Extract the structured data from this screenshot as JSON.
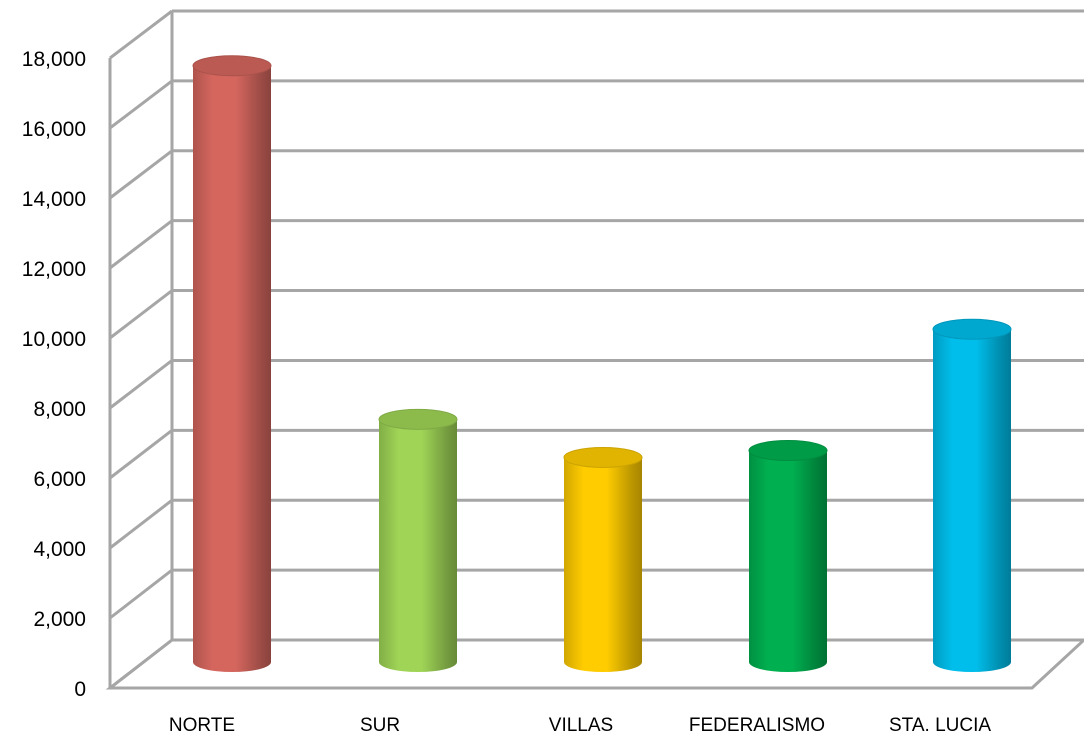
{
  "chart_data": {
    "type": "bar",
    "style": "3d-cylinder",
    "title": "",
    "xlabel": "",
    "ylabel": "",
    "categories": [
      "NORTE",
      "SUR",
      "VILLAS",
      "FEDERALISMO",
      "STA. LUCIA"
    ],
    "values": [
      17200,
      7000,
      5900,
      6100,
      9600
    ],
    "colors": [
      "#D4665E",
      "#9FD456",
      "#FFCC00",
      "#00B050",
      "#00BEEB"
    ],
    "ylim": [
      0,
      18000
    ],
    "yticks": [
      0,
      2000,
      4000,
      6000,
      8000,
      10000,
      12000,
      14000,
      16000,
      18000
    ],
    "ytick_labels": [
      "0",
      "2,000",
      "4,000",
      "6,000",
      "8,000",
      "10,000",
      "12,000",
      "14,000",
      "16,000",
      "18,000"
    ],
    "grid": true,
    "legend": "none"
  }
}
